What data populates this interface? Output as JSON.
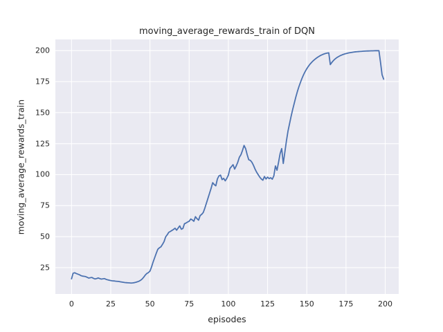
{
  "chart_data": {
    "type": "line",
    "title": "moving_average_rewards_train of DQN",
    "xlabel": "episodes",
    "ylabel": "moving_average_rewards_train",
    "xticks": [
      0,
      25,
      50,
      75,
      100,
      125,
      150,
      175,
      200
    ],
    "yticks": [
      25,
      50,
      75,
      100,
      125,
      150,
      175,
      200
    ],
    "xlim": [
      -10.3,
      208.6
    ],
    "ylim": [
      3.8,
      209.0
    ],
    "grid": true,
    "legend_position": "none",
    "colors": {
      "line": "#4c72b0",
      "plot_background": "#eaeaf2",
      "grid": "#ffffff",
      "text": "#262626",
      "figure_background": "#ffffff"
    },
    "series": [
      {
        "name": "moving_average_rewards_train",
        "x_start": 0,
        "x_step": 1,
        "values": [
          16.0,
          20.5,
          20.9,
          20.3,
          19.8,
          19.3,
          18.6,
          18.2,
          18.0,
          17.8,
          17.2,
          16.6,
          16.9,
          17.1,
          16.4,
          15.9,
          16.2,
          16.7,
          16.2,
          15.8,
          16.0,
          16.2,
          15.6,
          15.2,
          14.9,
          14.6,
          14.4,
          14.3,
          14.1,
          14.0,
          13.9,
          13.6,
          13.4,
          13.2,
          13.0,
          12.9,
          12.8,
          12.7,
          12.6,
          12.7,
          12.9,
          13.2,
          13.6,
          14.1,
          14.8,
          15.8,
          17.3,
          19.0,
          20.3,
          21.0,
          22.2,
          25.5,
          29.5,
          33.0,
          36.5,
          39.8,
          41.0,
          41.8,
          43.8,
          46.0,
          49.8,
          51.5,
          53.5,
          54.2,
          55.0,
          55.8,
          56.8,
          55.2,
          57.0,
          58.7,
          56.0,
          56.6,
          60.4,
          61.0,
          61.8,
          62.4,
          64.2,
          63.5,
          62.4,
          66.1,
          64.5,
          63.3,
          67.0,
          68.0,
          69.5,
          73.0,
          77.0,
          81.0,
          85.0,
          89.0,
          93.5,
          92.0,
          91.0,
          96.5,
          99.0,
          99.6,
          96.0,
          97.0,
          95.0,
          97.0,
          99.6,
          105.0,
          106.5,
          108.0,
          104.5,
          107.0,
          110.0,
          114.0,
          116.0,
          119.5,
          123.5,
          121.0,
          116.0,
          112.0,
          111.5,
          110.0,
          107.5,
          104.5,
          102.0,
          100.0,
          98.0,
          96.5,
          95.5,
          98.5,
          96.5,
          98.0,
          96.8,
          97.5,
          96.3,
          99.0,
          107.0,
          103.5,
          110.0,
          117.0,
          121.0,
          109.0,
          118.0,
          127.0,
          135.0,
          141.0,
          147.0,
          152.5,
          157.5,
          162.5,
          167.0,
          171.0,
          174.5,
          177.8,
          180.7,
          183.2,
          185.4,
          187.3,
          189.0,
          190.4,
          191.7,
          192.8,
          193.8,
          194.7,
          195.5,
          196.2,
          196.8,
          197.3,
          197.7,
          198.0,
          198.2,
          188.7,
          190.5,
          192.0,
          193.2,
          194.2,
          195.0,
          195.7,
          196.3,
          196.8,
          197.2,
          197.6,
          197.9,
          198.2,
          198.4,
          198.6,
          198.8,
          199.0,
          199.1,
          199.2,
          199.3,
          199.4,
          199.5,
          199.6,
          199.65,
          199.7,
          199.75,
          199.8,
          199.8,
          199.85,
          199.9,
          199.9,
          199.9,
          190.5,
          180.5,
          177.0
        ]
      }
    ]
  }
}
